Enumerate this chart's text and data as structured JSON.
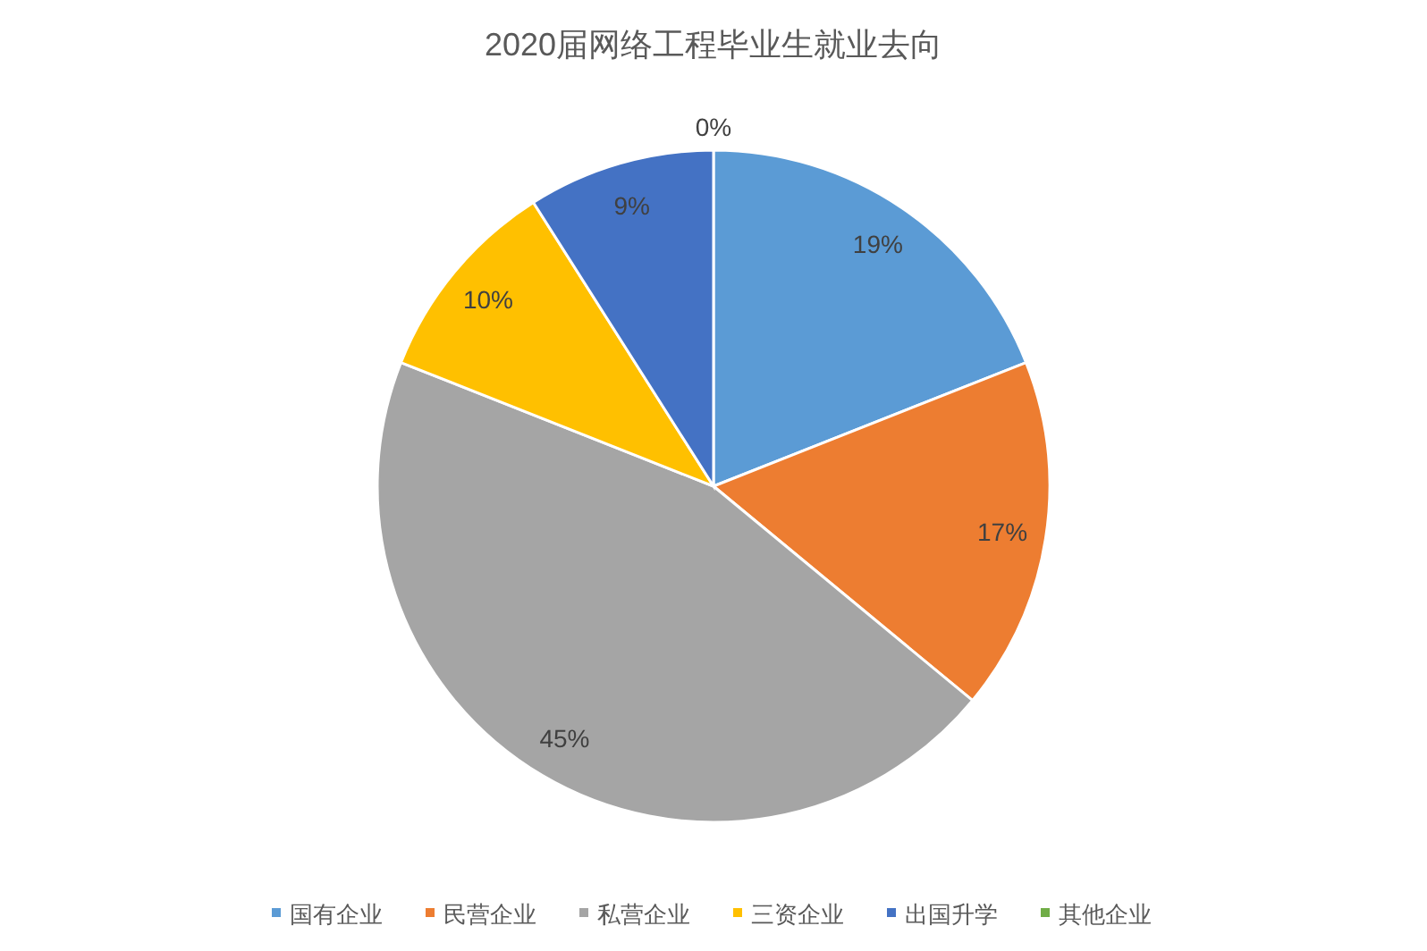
{
  "chart_data": {
    "type": "pie",
    "title": "2020届网络工程毕业生就业去向",
    "categories": [
      "国有企业",
      "民营企业",
      "私营企业",
      "三资企业",
      "出国升学",
      "其他企业"
    ],
    "values": [
      19,
      17,
      45,
      10,
      9,
      0
    ],
    "colors": [
      "#5b9bd5",
      "#ed7d31",
      "#a5a5a5",
      "#ffc000",
      "#4472c4",
      "#70ad47"
    ],
    "value_labels": [
      "19%",
      "17%",
      "45%",
      "10%",
      "9%",
      "0%"
    ],
    "legend": "bottom"
  }
}
